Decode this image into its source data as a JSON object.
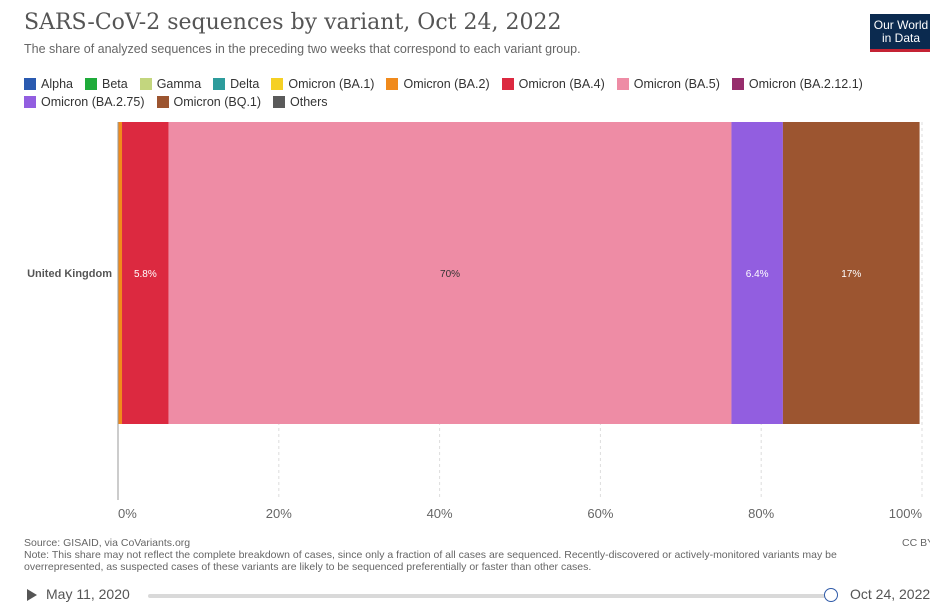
{
  "header": {
    "title": "SARS-CoV-2 sequences by variant, Oct 24, 2022",
    "subtitle": "The share of analyzed sequences in the preceding two weeks that correspond to each variant group.",
    "logo_line1": "Our World",
    "logo_line2": "in Data"
  },
  "legend": [
    {
      "label": "Alpha",
      "color": "#2a5ab0"
    },
    {
      "label": "Beta",
      "color": "#1fab3a"
    },
    {
      "label": "Gamma",
      "color": "#c3d67e"
    },
    {
      "label": "Delta",
      "color": "#2d9c9c"
    },
    {
      "label": "Omicron (BA.1)",
      "color": "#f5d024"
    },
    {
      "label": "Omicron (BA.2)",
      "color": "#f08a1c"
    },
    {
      "label": "Omicron (BA.4)",
      "color": "#dc2940"
    },
    {
      "label": "Omicron (BA.5)",
      "color": "#ee8ca5"
    },
    {
      "label": "Omicron (BA.2.12.1)",
      "color": "#972d6c"
    },
    {
      "label": "Omicron (BA.2.75)",
      "color": "#925ee0"
    },
    {
      "label": "Omicron (BQ.1)",
      "color": "#9c5530"
    },
    {
      "label": "Others",
      "color": "#5a5a5a"
    }
  ],
  "chart_data": {
    "type": "bar",
    "orientation": "horizontal",
    "stacked": true,
    "categories": [
      "United Kingdom"
    ],
    "x_ticks": [
      "0%",
      "20%",
      "40%",
      "60%",
      "80%",
      "100%"
    ],
    "xlim": [
      0,
      100
    ],
    "grid": "vertical",
    "series": [
      {
        "name": "Omicron (BA.2)",
        "values": [
          0.5
        ],
        "color": "#f08a1c",
        "label": ""
      },
      {
        "name": "Omicron (BA.4)",
        "values": [
          5.8
        ],
        "color": "#dc2940",
        "label": "5.8%"
      },
      {
        "name": "Omicron (BA.5)",
        "values": [
          70
        ],
        "color": "#ee8ca5",
        "label": "70%"
      },
      {
        "name": "Omicron (BA.2.75)",
        "values": [
          6.4
        ],
        "color": "#925ee0",
        "label": "6.4%"
      },
      {
        "name": "Omicron (BQ.1)",
        "values": [
          17
        ],
        "color": "#9c5530",
        "label": "17%"
      }
    ]
  },
  "footer": {
    "source": "Source: GISAID, via CoVariants.org",
    "note": "Note: This share may not reflect the complete breakdown of cases, since only a fraction of all cases are sequenced. Recently-discovered or actively-monitored variants may be overrepresented, as suspected cases of these variants are likely to be sequenced preferentially or faster than other cases.",
    "license": "CC BY"
  },
  "timeline": {
    "start_date": "May 11, 2020",
    "end_date": "Oct 24, 2022",
    "position": 1.0
  }
}
